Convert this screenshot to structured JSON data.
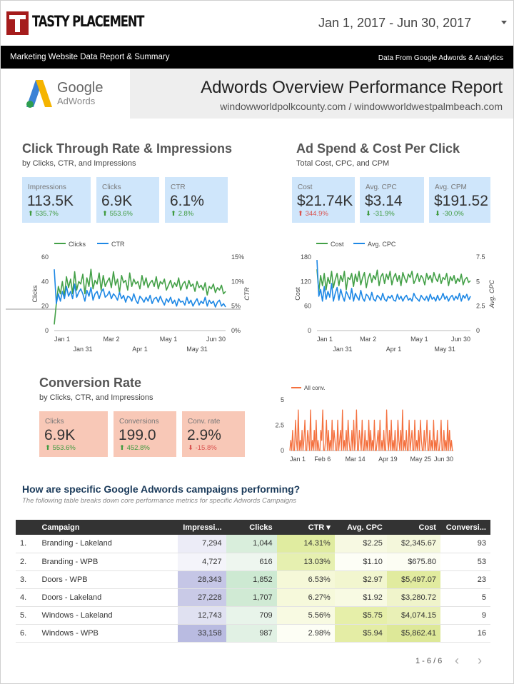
{
  "header": {
    "brand": "TASTY PLACEMENT",
    "date_range": "Jan 1, 2017 - Jun 30, 2017"
  },
  "banner": {
    "left": "Marketing Website Data Report & Summary",
    "right": "Data From Google Adwords & Analytics"
  },
  "adwords_logo": {
    "line1": "Google",
    "line2": "AdWords"
  },
  "title_panel": {
    "title": "Adwords Overview Performance Report",
    "subtitle": "windowworldpolkcounty.com / windowworldwestpalmbeach.com"
  },
  "ctr_section": {
    "title": "Click Through Rate & Impressions",
    "subtitle": "by Clicks, CTR, and Impressions",
    "cards": [
      {
        "label": "Impressions",
        "value": "113.5K",
        "delta": "⬆ 535.7%",
        "dir": "pos"
      },
      {
        "label": "Clicks",
        "value": "6.9K",
        "delta": "⬆ 553.6%",
        "dir": "pos"
      },
      {
        "label": "CTR",
        "value": "6.1%",
        "delta": "⬆ 2.8%",
        "dir": "pos"
      }
    ]
  },
  "spend_section": {
    "title": "Ad Spend & Cost Per Click",
    "subtitle": "Total Cost, CPC, and CPM",
    "cards": [
      {
        "label": "Cost",
        "value": "$21.74K",
        "delta": "⬆ 344.9%",
        "dir": "neg"
      },
      {
        "label": "Avg. CPC",
        "value": "$3.14",
        "delta": "⬇ -31.9%",
        "dir": "pos"
      },
      {
        "label": "Avg. CPM",
        "value": "$191.52",
        "delta": "⬇ -30.0%",
        "dir": "pos"
      }
    ]
  },
  "conv_section": {
    "title": "Conversion Rate",
    "subtitle": "by Clicks, CTR, and Impressions",
    "cards": [
      {
        "label": "Clicks",
        "value": "6.9K",
        "delta": "⬆ 553.6%",
        "dir": "pos"
      },
      {
        "label": "Conversions",
        "value": "199.0",
        "delta": "⬆ 452.8%",
        "dir": "pos"
      },
      {
        "label": "Conv. rate",
        "value": "2.9%",
        "delta": "⬇ -15.8%",
        "dir": "neg"
      }
    ]
  },
  "chart_data": [
    {
      "type": "line",
      "legend": [
        "Clicks",
        "CTR"
      ],
      "colors": {
        "Clicks": "#43a047",
        "CTR": "#1e88e5"
      },
      "ylabel_left": "Clicks",
      "ylabel_right": "CTR",
      "ylim_left": [
        0,
        60
      ],
      "yticks_left": [
        "0",
        "20",
        "40",
        "60"
      ],
      "ylim_right": [
        0,
        15
      ],
      "yticks_right": [
        "0%",
        "5%",
        "10%",
        "15%"
      ],
      "xticks_top": [
        "Jan 1",
        "Mar 2",
        "May 1",
        "Jun 30"
      ],
      "xticks_bottom": [
        "Jan 31",
        "Apr 1",
        "May 31"
      ],
      "series": [
        {
          "name": "Clicks",
          "axis": "left",
          "values": [
            5,
            22,
            36,
            30,
            40,
            28,
            44,
            35,
            42,
            30,
            48,
            33,
            40,
            38,
            46,
            30,
            43,
            36,
            50,
            34,
            41,
            38,
            47,
            33,
            45,
            36,
            40,
            43,
            35,
            48,
            37,
            42,
            31,
            45,
            39,
            41,
            33,
            47,
            36,
            42,
            38,
            40,
            34,
            45,
            37,
            43,
            35,
            39,
            41,
            36,
            44,
            34,
            40,
            38,
            42,
            33,
            37,
            41,
            35,
            39,
            36,
            43,
            33,
            38,
            40,
            34,
            41,
            36,
            38,
            32,
            40,
            35,
            37,
            33,
            39,
            29,
            36,
            34,
            38,
            31,
            35,
            33,
            37,
            30,
            32
          ]
        },
        {
          "name": "CTR",
          "axis": "right",
          "values": [
            12.5,
            5.5,
            7.5,
            6.0,
            8.0,
            6.5,
            9.0,
            7.0,
            8.0,
            6.5,
            9.5,
            6.8,
            7.8,
            8.5,
            7.5,
            6.0,
            8.2,
            7.0,
            8.8,
            6.2,
            7.5,
            8.0,
            6.5,
            7.8,
            8.5,
            6.8,
            7.2,
            8.0,
            6.5,
            7.5,
            7.0,
            6.2,
            7.8,
            6.5,
            7.2,
            5.8,
            7.0,
            6.8,
            6.0,
            7.5,
            6.2,
            5.5,
            7.0,
            6.5,
            5.8,
            6.8,
            6.0,
            7.2,
            5.5,
            6.5,
            6.8,
            5.8,
            7.0,
            6.0,
            5.2,
            6.5,
            5.8,
            6.8,
            5.5,
            6.2,
            5.0,
            6.5,
            5.8,
            6.0,
            5.2,
            6.8,
            5.5,
            6.2,
            5.0,
            5.8,
            6.5,
            5.2,
            6.0,
            5.5,
            6.8,
            5.0,
            6.2,
            5.5,
            6.0,
            4.8,
            5.8,
            6.2,
            5.0,
            5.5,
            4.8
          ]
        }
      ]
    },
    {
      "type": "line",
      "legend": [
        "Cost",
        "Avg. CPC"
      ],
      "colors": {
        "Cost": "#43a047",
        "Avg. CPC": "#1e88e5"
      },
      "ylabel_left": "Cost",
      "ylabel_right": "Avg. CPC",
      "ylim_left": [
        0,
        180
      ],
      "yticks_left": [
        "0",
        "60",
        "120",
        "180"
      ],
      "ylim_right": [
        0,
        7.5
      ],
      "yticks_right": [
        "0",
        "2.5",
        "5",
        "7.5"
      ],
      "xticks_top": [
        "Jan 1",
        "Mar 2",
        "May 1",
        "Jun 30"
      ],
      "xticks_bottom": [
        "Jan 31",
        "Apr 1",
        "May 31"
      ],
      "series": [
        {
          "name": "Cost",
          "axis": "left",
          "values": [
            150,
            95,
            135,
            110,
            140,
            100,
            130,
            115,
            145,
            105,
            125,
            140,
            110,
            135,
            120,
            145,
            100,
            130,
            125,
            140,
            108,
            138,
            120,
            145,
            112,
            130,
            142,
            105,
            128,
            140,
            118,
            135,
            125,
            148,
            110,
            132,
            140,
            115,
            138,
            125,
            145,
            112,
            130,
            140,
            120,
            135,
            110,
            142,
            128,
            118,
            138,
            130,
            145,
            115,
            125,
            140,
            120,
            135,
            128,
            112,
            140,
            125,
            135,
            118,
            142,
            128,
            120,
            138,
            115,
            130,
            125,
            140,
            110,
            132,
            122,
            135,
            115,
            128,
            120,
            138,
            112,
            125,
            130,
            118,
            122
          ]
        },
        {
          "name": "Avg. CPC",
          "axis": "right",
          "values": [
            7.2,
            3.5,
            4.2,
            3.0,
            4.5,
            3.2,
            4.0,
            3.4,
            4.8,
            3.0,
            3.8,
            4.4,
            3.1,
            4.2,
            3.5,
            3.0,
            4.0,
            3.6,
            3.2,
            4.3,
            3.0,
            3.8,
            3.4,
            3.1,
            4.1,
            3.3,
            3.0,
            3.7,
            3.5,
            3.1,
            3.9,
            3.2,
            3.0,
            3.6,
            3.4,
            3.1,
            3.8,
            3.2,
            3.0,
            3.5,
            3.3,
            3.6,
            3.1,
            3.0,
            3.7,
            3.2,
            3.5,
            3.0,
            3.4,
            3.6,
            3.1,
            3.3,
            3.0,
            3.8,
            3.4,
            3.2,
            3.0,
            3.6,
            3.3,
            3.1,
            3.5,
            3.0,
            3.7,
            3.2,
            3.4,
            3.0,
            3.6,
            3.1,
            3.3,
            3.8,
            3.2,
            3.5,
            3.0,
            3.4,
            3.6,
            3.1,
            3.5,
            3.2,
            3.8,
            3.0,
            3.6,
            3.3,
            3.7,
            3.1,
            3.5
          ]
        }
      ]
    },
    {
      "type": "line",
      "legend": [
        "All conv."
      ],
      "colors": {
        "All conv.": "#f4703e"
      },
      "ylim_left": [
        0,
        5
      ],
      "yticks_left": [
        "0",
        "2.5",
        "5"
      ],
      "xticks": [
        "Jan 1",
        "Feb 6",
        "Mar 14",
        "Apr 19",
        "May 25",
        "Jun 30"
      ],
      "series": [
        {
          "name": "All conv.",
          "axis": "left",
          "values": [
            0,
            1,
            0,
            2,
            0,
            0,
            3,
            1,
            0,
            4,
            0,
            1,
            0,
            2,
            0,
            1,
            3,
            0,
            0,
            2,
            1,
            0,
            4,
            0,
            1,
            0,
            2,
            0,
            3,
            0,
            1,
            0,
            0,
            2,
            1,
            4,
            0,
            0,
            1,
            3,
            0,
            2,
            0,
            1,
            0,
            3,
            0,
            2,
            1,
            0,
            0,
            3,
            0,
            1,
            2,
            0,
            4,
            0,
            1,
            0,
            2,
            0,
            3,
            1,
            0,
            0,
            2,
            0,
            3,
            0,
            1,
            4,
            0,
            0,
            2,
            1,
            0,
            3,
            0,
            0,
            2,
            0,
            1,
            0,
            3,
            0,
            2,
            0,
            1,
            0,
            3,
            0,
            0,
            1,
            2,
            0,
            3,
            0,
            1,
            0,
            2,
            0,
            0,
            4,
            1,
            0,
            2,
            0,
            3,
            0,
            1,
            0,
            2,
            0,
            0,
            3,
            1,
            0,
            2,
            0,
            4,
            0,
            1,
            0,
            2,
            0,
            0,
            3,
            0,
            1,
            2,
            0,
            0,
            3,
            0,
            1,
            0,
            2,
            0,
            3,
            1,
            0,
            0,
            2,
            0,
            1,
            3,
            0,
            0,
            2,
            0,
            1,
            0,
            3,
            0,
            1,
            0,
            2,
            0,
            0,
            1,
            3,
            0,
            0,
            2,
            0,
            1,
            0,
            3,
            0,
            2,
            0,
            1,
            0,
            0
          ]
        }
      ]
    }
  ],
  "campaigns": {
    "title": "How are specific Google Adwords campaigns performing?",
    "subtitle": "The following table breaks down core performance metrics for specific Adwords Campaigns",
    "columns": [
      "Campaign",
      "Impressi...",
      "Clicks",
      "CTR ▾",
      "Avg. CPC",
      "Cost",
      "Conversi..."
    ],
    "rows": [
      {
        "num": "1.",
        "campaign": "Branding - Lakeland",
        "impressions": "7,294",
        "clicks": "1,044",
        "ctr": "14.31%",
        "cpc": "$2.25",
        "cost": "$2,345.67",
        "conv": "93"
      },
      {
        "num": "2.",
        "campaign": "Branding - WPB",
        "impressions": "4,727",
        "clicks": "616",
        "ctr": "13.03%",
        "cpc": "$1.10",
        "cost": "$675.80",
        "conv": "53"
      },
      {
        "num": "3.",
        "campaign": "Doors - WPB",
        "impressions": "28,343",
        "clicks": "1,852",
        "ctr": "6.53%",
        "cpc": "$2.97",
        "cost": "$5,497.07",
        "conv": "23"
      },
      {
        "num": "4.",
        "campaign": "Doors - Lakeland",
        "impressions": "27,228",
        "clicks": "1,707",
        "ctr": "6.27%",
        "cpc": "$1.92",
        "cost": "$3,280.72",
        "conv": "5"
      },
      {
        "num": "5.",
        "campaign": "Windows - Lakeland",
        "impressions": "12,743",
        "clicks": "709",
        "ctr": "5.56%",
        "cpc": "$5.75",
        "cost": "$4,074.15",
        "conv": "9"
      },
      {
        "num": "6.",
        "campaign": "Windows - WPB",
        "impressions": "33,158",
        "clicks": "987",
        "ctr": "2.98%",
        "cpc": "$5.94",
        "cost": "$5,862.41",
        "conv": "16"
      }
    ],
    "heat_colors": {
      "impressions": [
        "#ececf7",
        "#f4f4fa",
        "#c5c6e6",
        "#c9cae7",
        "#e0e1f1",
        "#b9bbe1"
      ],
      "clicks": [
        "#d9eedc",
        "#eef6ef",
        "#cde9d2",
        "#d0ead4",
        "#e8f4ea",
        "#e1f1e4"
      ],
      "ctr": [
        "#e0eca0",
        "#e6f0b0",
        "#f5f8d8",
        "#f6f9db",
        "#f8fae2",
        "#fdfef5"
      ],
      "cpc": [
        "#f7f9e2",
        "#fdfef6",
        "#f2f6cf",
        "#f8fae3",
        "#e6efa9",
        "#e4eda5"
      ],
      "cost": [
        "#f4f7db",
        "#fcfdf3",
        "#e1eb9f",
        "#f0f4cb",
        "#e9f0b6",
        "#dde898"
      ]
    },
    "pager": "1 - 6 / 6"
  }
}
